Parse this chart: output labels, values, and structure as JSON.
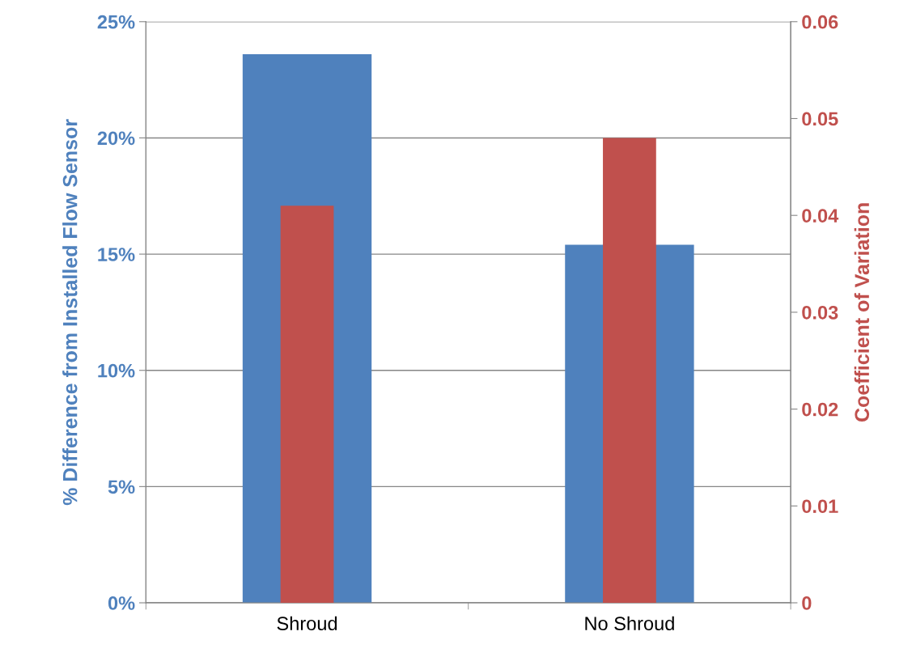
{
  "chart_data": {
    "type": "bar",
    "ylabel": "% Difference from Installed Flow Sensor",
    "y2label": "Coefficient of Variation",
    "categories": [
      "Shroud",
      "No Shroud"
    ],
    "series": [
      {
        "color": "#4f81bd",
        "values": [
          23.6,
          15.4
        ]
      },
      {
        "color": "#c0504d",
        "values": [
          0.041,
          0.048
        ],
        "axis": "y2"
      }
    ],
    "ylim": [
      0,
      25
    ],
    "yticks": [
      {
        "value": 0,
        "label": "0%"
      },
      {
        "value": 5,
        "label": "5%"
      },
      {
        "value": 10,
        "label": "10%"
      },
      {
        "value": 15,
        "label": "15%"
      },
      {
        "value": 20,
        "label": "20%"
      },
      {
        "value": 25,
        "label": "25%"
      }
    ],
    "y2lim": [
      0,
      0.06
    ],
    "y2ticks": [
      {
        "value": 0,
        "label": "0"
      },
      0.01,
      0.02,
      0.03,
      0.04,
      0.05,
      0.06
    ],
    "grid": "y",
    "legend": false
  }
}
